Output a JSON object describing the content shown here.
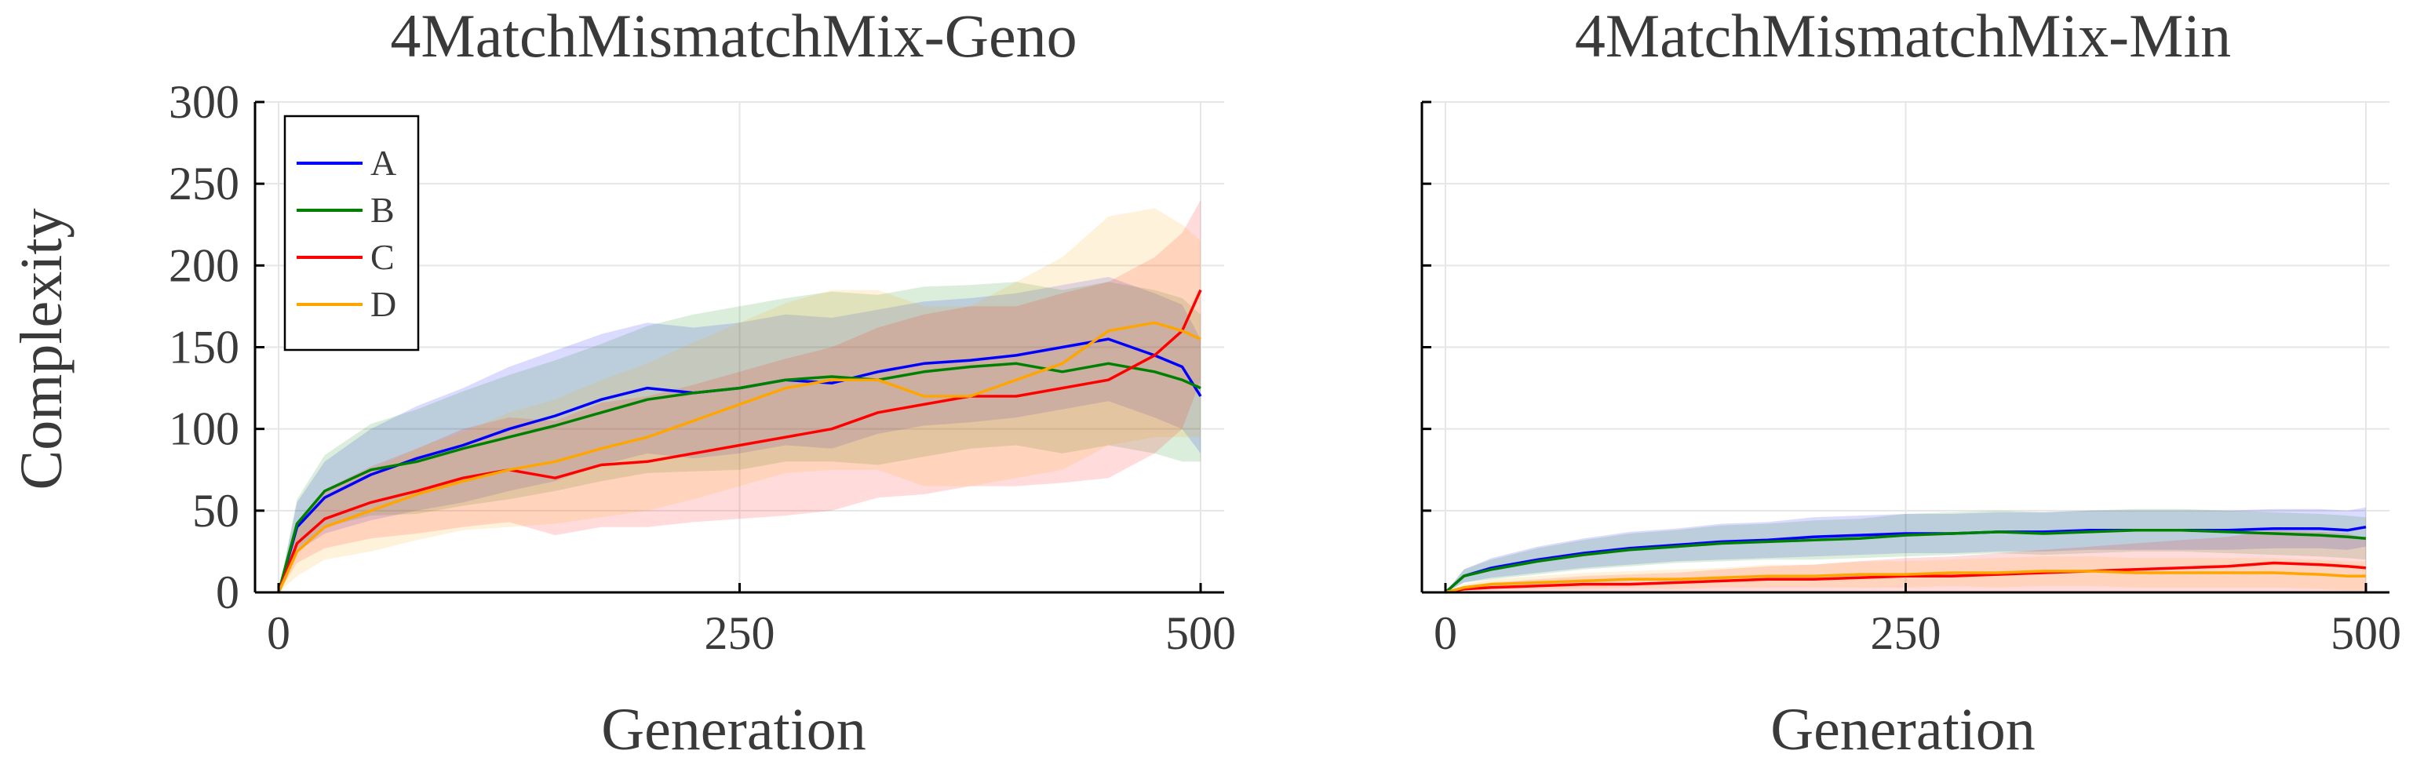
{
  "chart_data": [
    {
      "type": "line",
      "title": "4MatchMismatchMix-Geno",
      "xlabel": "Generation",
      "ylabel": "Complexity",
      "xlim": [
        0,
        500
      ],
      "ylim": [
        0,
        300
      ],
      "xticks": [
        0,
        250,
        500
      ],
      "yticks": [
        0,
        50,
        100,
        150,
        200,
        250,
        300
      ],
      "grid": true,
      "legend_position": "top-left",
      "shaded_band": true,
      "series": [
        {
          "name": "A",
          "color": "#0000ff",
          "x": [
            0,
            10,
            25,
            50,
            75,
            100,
            125,
            150,
            175,
            200,
            225,
            250,
            275,
            300,
            325,
            350,
            375,
            400,
            425,
            450,
            475,
            490,
            500
          ],
          "y": [
            0,
            40,
            58,
            72,
            82,
            90,
            100,
            108,
            118,
            125,
            122,
            125,
            130,
            128,
            135,
            140,
            142,
            145,
            150,
            155,
            145,
            138,
            120
          ],
          "band": [
            0,
            15,
            22,
            28,
            32,
            35,
            38,
            40,
            40,
            40,
            40,
            40,
            40,
            40,
            38,
            38,
            38,
            38,
            38,
            38,
            38,
            38,
            35
          ]
        },
        {
          "name": "B",
          "color": "#008000",
          "x": [
            0,
            10,
            25,
            50,
            75,
            100,
            125,
            150,
            175,
            200,
            225,
            250,
            275,
            300,
            325,
            350,
            375,
            400,
            425,
            450,
            475,
            490,
            500
          ],
          "y": [
            0,
            42,
            62,
            75,
            80,
            88,
            95,
            102,
            110,
            118,
            122,
            125,
            130,
            132,
            130,
            135,
            138,
            140,
            135,
            140,
            135,
            130,
            125
          ],
          "band": [
            0,
            15,
            22,
            28,
            32,
            35,
            38,
            40,
            42,
            45,
            48,
            50,
            50,
            52,
            52,
            52,
            50,
            50,
            50,
            50,
            50,
            50,
            45
          ]
        },
        {
          "name": "C",
          "color": "#ff0000",
          "x": [
            0,
            10,
            25,
            50,
            75,
            100,
            125,
            150,
            175,
            200,
            225,
            250,
            275,
            300,
            325,
            350,
            375,
            400,
            425,
            450,
            475,
            490,
            500
          ],
          "y": [
            0,
            30,
            45,
            55,
            62,
            70,
            75,
            70,
            78,
            80,
            85,
            90,
            95,
            100,
            110,
            115,
            120,
            120,
            125,
            130,
            145,
            160,
            185
          ],
          "band": [
            0,
            12,
            18,
            22,
            26,
            30,
            32,
            35,
            38,
            40,
            42,
            45,
            48,
            50,
            52,
            55,
            55,
            55,
            58,
            60,
            60,
            60,
            55
          ]
        },
        {
          "name": "D",
          "color": "#ffa500",
          "x": [
            0,
            10,
            25,
            50,
            75,
            100,
            125,
            150,
            175,
            200,
            225,
            250,
            275,
            300,
            325,
            350,
            375,
            400,
            425,
            450,
            475,
            490,
            500
          ],
          "y": [
            0,
            25,
            40,
            50,
            60,
            68,
            75,
            80,
            88,
            95,
            105,
            115,
            125,
            130,
            130,
            120,
            120,
            130,
            140,
            160,
            165,
            160,
            155
          ],
          "band": [
            0,
            15,
            20,
            25,
            28,
            30,
            35,
            38,
            42,
            45,
            48,
            50,
            52,
            55,
            55,
            55,
            55,
            60,
            65,
            70,
            70,
            65,
            60
          ]
        }
      ]
    },
    {
      "type": "line",
      "title": "4MatchMismatchMix-Min",
      "xlabel": "Generation",
      "ylabel": "",
      "xlim": [
        0,
        500
      ],
      "ylim": [
        0,
        300
      ],
      "xticks": [
        0,
        250,
        500
      ],
      "yticks": [
        0,
        50,
        100,
        150,
        200,
        250,
        300
      ],
      "show_ytick_labels": false,
      "grid": true,
      "shaded_band": true,
      "series": [
        {
          "name": "A",
          "color": "#0000ff",
          "x": [
            0,
            10,
            25,
            50,
            75,
            100,
            125,
            150,
            175,
            200,
            225,
            250,
            275,
            300,
            325,
            350,
            375,
            400,
            425,
            450,
            475,
            490,
            500
          ],
          "y": [
            0,
            10,
            15,
            20,
            24,
            27,
            29,
            31,
            32,
            34,
            35,
            36,
            36,
            37,
            37,
            38,
            38,
            38,
            38,
            39,
            39,
            38,
            40
          ],
          "band": [
            0,
            4,
            6,
            8,
            9,
            10,
            10,
            11,
            11,
            12,
            12,
            12,
            12,
            12,
            12,
            12,
            12,
            12,
            12,
            12,
            12,
            12,
            12
          ]
        },
        {
          "name": "B",
          "color": "#008000",
          "x": [
            0,
            10,
            25,
            50,
            75,
            100,
            125,
            150,
            175,
            200,
            225,
            250,
            275,
            300,
            325,
            350,
            375,
            400,
            425,
            450,
            475,
            490,
            500
          ],
          "y": [
            0,
            10,
            14,
            19,
            23,
            26,
            28,
            30,
            31,
            32,
            33,
            35,
            36,
            37,
            36,
            37,
            38,
            38,
            37,
            36,
            35,
            34,
            33
          ],
          "band": [
            0,
            4,
            6,
            8,
            9,
            10,
            10,
            11,
            11,
            12,
            12,
            13,
            13,
            13,
            13,
            13,
            13,
            13,
            13,
            13,
            13,
            13,
            13
          ]
        },
        {
          "name": "C",
          "color": "#ff0000",
          "x": [
            0,
            10,
            25,
            50,
            75,
            100,
            125,
            150,
            175,
            200,
            225,
            250,
            275,
            300,
            325,
            350,
            375,
            400,
            425,
            450,
            475,
            490,
            500
          ],
          "y": [
            0,
            2,
            3,
            4,
            5,
            5,
            6,
            7,
            8,
            8,
            9,
            10,
            10,
            11,
            12,
            13,
            14,
            15,
            16,
            18,
            17,
            16,
            15
          ],
          "band": [
            0,
            2,
            3,
            4,
            5,
            6,
            6,
            7,
            8,
            9,
            10,
            11,
            12,
            13,
            14,
            15,
            16,
            17,
            18,
            20,
            20,
            20,
            18
          ]
        },
        {
          "name": "D",
          "color": "#ffa500",
          "x": [
            0,
            10,
            25,
            50,
            75,
            100,
            125,
            150,
            175,
            200,
            225,
            250,
            275,
            300,
            325,
            350,
            375,
            400,
            425,
            450,
            475,
            490,
            500
          ],
          "y": [
            0,
            3,
            5,
            6,
            7,
            8,
            8,
            9,
            10,
            10,
            11,
            11,
            12,
            12,
            13,
            13,
            12,
            12,
            12,
            12,
            11,
            10,
            10
          ],
          "band": [
            0,
            2,
            3,
            4,
            5,
            5,
            6,
            6,
            7,
            7,
            8,
            8,
            8,
            9,
            9,
            9,
            9,
            9,
            9,
            9,
            9,
            9,
            9
          ]
        }
      ]
    }
  ]
}
